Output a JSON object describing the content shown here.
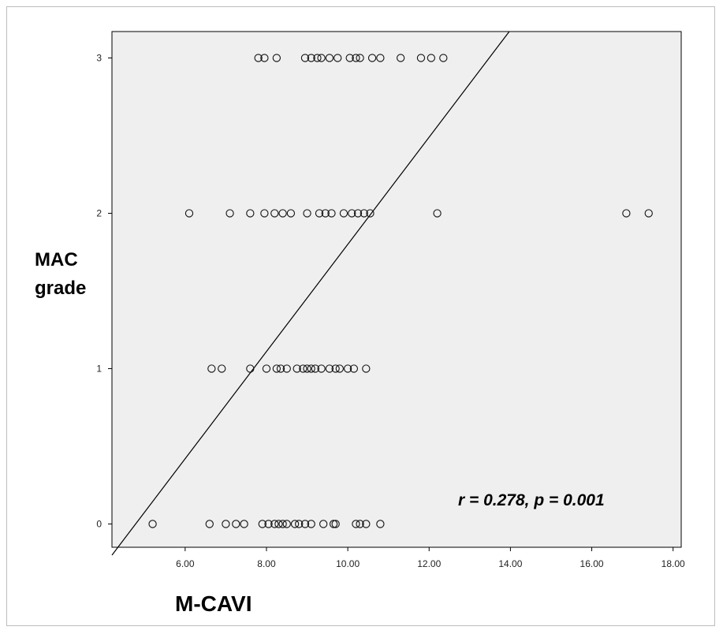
{
  "chart_data": {
    "type": "scatter",
    "title": "",
    "xlabel": "M-CAVI",
    "ylabel_line1": "MAC",
    "ylabel_line2": "grade",
    "annotation": "r = 0.278, p = 0.001",
    "xlim": [
      4.2,
      18.2
    ],
    "ylim": [
      -0.15,
      3.17
    ],
    "x_ticks": [
      6.0,
      8.0,
      10.0,
      12.0,
      14.0,
      16.0,
      18.0
    ],
    "x_tick_labels": [
      "6.00",
      "8.00",
      "10.00",
      "12.00",
      "14.00",
      "16.00",
      "18.00"
    ],
    "y_ticks": [
      0,
      1,
      2,
      3
    ],
    "y_tick_labels": [
      "0",
      "1",
      "2",
      "3"
    ],
    "grid": false,
    "plot_background": "#efefef",
    "marker_style": "open-circle",
    "regression_line": {
      "intercept": -1.65,
      "slope": 0.345
    },
    "series": [
      {
        "points": [
          {
            "x": 5.2,
            "y": 0
          },
          {
            "x": 6.6,
            "y": 0
          },
          {
            "x": 7.0,
            "y": 0
          },
          {
            "x": 7.25,
            "y": 0
          },
          {
            "x": 7.45,
            "y": 0
          },
          {
            "x": 7.9,
            "y": 0
          },
          {
            "x": 8.05,
            "y": 0
          },
          {
            "x": 8.2,
            "y": 0
          },
          {
            "x": 8.3,
            "y": 0
          },
          {
            "x": 8.4,
            "y": 0
          },
          {
            "x": 8.5,
            "y": 0
          },
          {
            "x": 8.7,
            "y": 0
          },
          {
            "x": 8.8,
            "y": 0
          },
          {
            "x": 8.95,
            "y": 0
          },
          {
            "x": 9.1,
            "y": 0
          },
          {
            "x": 9.4,
            "y": 0
          },
          {
            "x": 9.65,
            "y": 0
          },
          {
            "x": 9.7,
            "y": 0
          },
          {
            "x": 10.2,
            "y": 0
          },
          {
            "x": 10.3,
            "y": 0
          },
          {
            "x": 10.45,
            "y": 0
          },
          {
            "x": 10.8,
            "y": 0
          },
          {
            "x": 6.65,
            "y": 1
          },
          {
            "x": 6.9,
            "y": 1
          },
          {
            "x": 7.6,
            "y": 1
          },
          {
            "x": 8.0,
            "y": 1
          },
          {
            "x": 8.25,
            "y": 1
          },
          {
            "x": 8.35,
            "y": 1
          },
          {
            "x": 8.5,
            "y": 1
          },
          {
            "x": 8.75,
            "y": 1
          },
          {
            "x": 8.9,
            "y": 1
          },
          {
            "x": 9.0,
            "y": 1
          },
          {
            "x": 9.1,
            "y": 1
          },
          {
            "x": 9.2,
            "y": 1
          },
          {
            "x": 9.35,
            "y": 1
          },
          {
            "x": 9.55,
            "y": 1
          },
          {
            "x": 9.7,
            "y": 1
          },
          {
            "x": 9.8,
            "y": 1
          },
          {
            "x": 10.0,
            "y": 1
          },
          {
            "x": 10.15,
            "y": 1
          },
          {
            "x": 10.45,
            "y": 1
          },
          {
            "x": 6.1,
            "y": 2
          },
          {
            "x": 7.1,
            "y": 2
          },
          {
            "x": 7.6,
            "y": 2
          },
          {
            "x": 7.95,
            "y": 2
          },
          {
            "x": 8.2,
            "y": 2
          },
          {
            "x": 8.4,
            "y": 2
          },
          {
            "x": 8.6,
            "y": 2
          },
          {
            "x": 9.0,
            "y": 2
          },
          {
            "x": 9.3,
            "y": 2
          },
          {
            "x": 9.45,
            "y": 2
          },
          {
            "x": 9.6,
            "y": 2
          },
          {
            "x": 9.9,
            "y": 2
          },
          {
            "x": 10.1,
            "y": 2
          },
          {
            "x": 10.25,
            "y": 2
          },
          {
            "x": 10.4,
            "y": 2
          },
          {
            "x": 10.55,
            "y": 2
          },
          {
            "x": 12.2,
            "y": 2
          },
          {
            "x": 16.85,
            "y": 2
          },
          {
            "x": 17.4,
            "y": 2
          },
          {
            "x": 7.8,
            "y": 3
          },
          {
            "x": 7.95,
            "y": 3
          },
          {
            "x": 8.25,
            "y": 3
          },
          {
            "x": 8.95,
            "y": 3
          },
          {
            "x": 9.1,
            "y": 3
          },
          {
            "x": 9.25,
            "y": 3
          },
          {
            "x": 9.35,
            "y": 3
          },
          {
            "x": 9.55,
            "y": 3
          },
          {
            "x": 9.75,
            "y": 3
          },
          {
            "x": 10.05,
            "y": 3
          },
          {
            "x": 10.2,
            "y": 3
          },
          {
            "x": 10.3,
            "y": 3
          },
          {
            "x": 10.6,
            "y": 3
          },
          {
            "x": 10.8,
            "y": 3
          },
          {
            "x": 11.3,
            "y": 3
          },
          {
            "x": 11.8,
            "y": 3
          },
          {
            "x": 12.05,
            "y": 3
          },
          {
            "x": 12.35,
            "y": 3
          }
        ]
      }
    ]
  }
}
